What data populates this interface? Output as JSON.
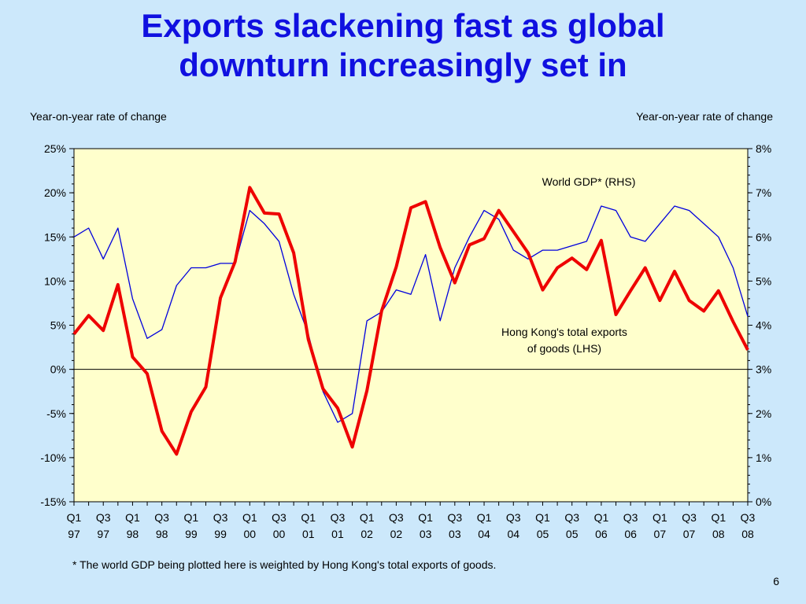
{
  "slide": {
    "title_line1": "Exports slackening fast as global",
    "title_line2": "downturn increasingly set in",
    "footnote": "*  The world GDP being plotted here is weighted by Hong Kong's total exports of goods.",
    "page_number": "6",
    "background_color": "#cce8fb",
    "title_color": "#1010e0"
  },
  "chart_data": {
    "type": "line",
    "plot_background": "#ffffcc",
    "left_axis_title": "Year-on-year rate of change",
    "right_axis_title": "Year-on-year rate of change",
    "ylim_left": [
      -15,
      25
    ],
    "ylim_right": [
      0,
      8
    ],
    "yticks_left": [
      "-15%",
      "-10%",
      "-5%",
      "0%",
      "5%",
      "10%",
      "15%",
      "20%",
      "25%"
    ],
    "yticks_right": [
      "0%",
      "1%",
      "2%",
      "3%",
      "4%",
      "5%",
      "6%",
      "7%",
      "8%"
    ],
    "x_tick_labels": [
      [
        "Q1",
        "97"
      ],
      [
        "Q3",
        "97"
      ],
      [
        "Q1",
        "98"
      ],
      [
        "Q3",
        "98"
      ],
      [
        "Q1",
        "99"
      ],
      [
        "Q3",
        "99"
      ],
      [
        "Q1",
        "00"
      ],
      [
        "Q3",
        "00"
      ],
      [
        "Q1",
        "01"
      ],
      [
        "Q3",
        "01"
      ],
      [
        "Q1",
        "02"
      ],
      [
        "Q3",
        "02"
      ],
      [
        "Q1",
        "03"
      ],
      [
        "Q3",
        "03"
      ],
      [
        "Q1",
        "04"
      ],
      [
        "Q3",
        "04"
      ],
      [
        "Q1",
        "05"
      ],
      [
        "Q3",
        "05"
      ],
      [
        "Q1",
        "06"
      ],
      [
        "Q3",
        "06"
      ],
      [
        "Q1",
        "07"
      ],
      [
        "Q3",
        "07"
      ],
      [
        "Q1",
        "08"
      ],
      [
        "Q3",
        "08"
      ]
    ],
    "x": [
      "Q1 97",
      "Q2 97",
      "Q3 97",
      "Q4 97",
      "Q1 98",
      "Q2 98",
      "Q3 98",
      "Q4 98",
      "Q1 99",
      "Q2 99",
      "Q3 99",
      "Q4 99",
      "Q1 00",
      "Q2 00",
      "Q3 00",
      "Q4 00",
      "Q1 01",
      "Q2 01",
      "Q3 01",
      "Q4 01",
      "Q1 02",
      "Q2 02",
      "Q3 02",
      "Q4 02",
      "Q1 03",
      "Q2 03",
      "Q3 03",
      "Q4 03",
      "Q1 04",
      "Q2 04",
      "Q3 04",
      "Q4 04",
      "Q1 05",
      "Q2 05",
      "Q3 05",
      "Q4 05",
      "Q1 06",
      "Q2 06",
      "Q3 06",
      "Q4 06",
      "Q1 07",
      "Q2 07",
      "Q3 07",
      "Q4 07",
      "Q1 08",
      "Q2 08",
      "Q3 08"
    ],
    "series": [
      {
        "name": "Hong Kong's total exports of goods (LHS)",
        "axis": "left",
        "color": "#ee0000",
        "values": [
          4.0,
          6.1,
          4.4,
          9.6,
          1.4,
          -0.5,
          -7.0,
          -9.6,
          -4.8,
          -2.0,
          8.1,
          12.2,
          20.6,
          17.7,
          17.6,
          13.2,
          3.4,
          -2.2,
          -4.4,
          -8.8,
          -2.4,
          6.6,
          11.6,
          18.3,
          19.0,
          13.8,
          9.8,
          14.1,
          14.8,
          18.0,
          15.6,
          13.2,
          9.0,
          11.5,
          12.6,
          11.3,
          14.6,
          6.2,
          8.9,
          11.5,
          7.8,
          11.1,
          7.8,
          6.6,
          8.9,
          5.4,
          2.2
        ]
      },
      {
        "name": "World GDP* (RHS)",
        "axis": "right",
        "color": "#0000dd",
        "values": [
          6.0,
          6.2,
          5.5,
          6.2,
          4.6,
          3.7,
          3.9,
          4.9,
          5.3,
          5.3,
          5.4,
          5.4,
          6.6,
          6.3,
          5.9,
          4.7,
          3.8,
          2.5,
          1.8,
          2.0,
          4.1,
          4.3,
          4.8,
          4.7,
          5.6,
          4.1,
          5.3,
          6.0,
          6.6,
          6.4,
          5.7,
          5.5,
          5.7,
          5.7,
          5.8,
          5.9,
          6.7,
          6.6,
          6.0,
          5.9,
          6.3,
          6.7,
          6.6,
          6.3,
          6.0,
          5.3,
          4.2
        ]
      }
    ],
    "annotations": {
      "world_gdp_label": "World GDP* (RHS)",
      "hk_exports_label_line1": "Hong Kong's total exports",
      "hk_exports_label_line2": "of goods (LHS)"
    }
  }
}
